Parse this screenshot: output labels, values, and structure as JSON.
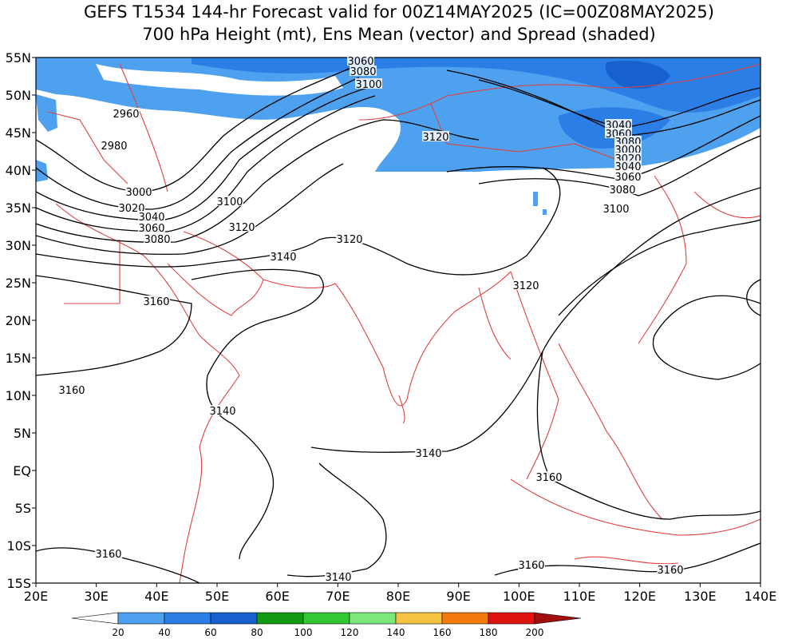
{
  "header": {
    "title": "GEFS T1534 144-hr Forecast valid for 00Z14MAY2025 (IC=00Z08MAY2025)",
    "subtitle": "700 hPa Height (mt), Ens Mean (vector) and Spread (shaded)"
  },
  "axes": {
    "lat_labels": [
      "55N",
      "50N",
      "45N",
      "40N",
      "35N",
      "30N",
      "25N",
      "20N",
      "15N",
      "10N",
      "5N",
      "EQ",
      "5S",
      "10S",
      "15S"
    ],
    "lon_labels": [
      "20E",
      "30E",
      "40E",
      "50E",
      "60E",
      "70E",
      "80E",
      "90E",
      "100E",
      "110E",
      "120E",
      "130E",
      "140E"
    ]
  },
  "contour_labels": [
    "3060",
    "3080",
    "3100",
    "2960",
    "2980",
    "3120",
    "3040",
    "3060",
    "3080",
    "3000",
    "3020",
    "3040",
    "3060",
    "3080",
    "3100",
    "3000",
    "3020",
    "3040",
    "3060",
    "3080",
    "3100",
    "3120",
    "3120",
    "3140",
    "3120",
    "3160",
    "3160",
    "3140",
    "3140",
    "3160",
    "3160",
    "3160",
    "3140",
    "3160"
  ],
  "colorbar": {
    "colors": [
      "#ffffff",
      "#4ea1ee",
      "#2b7ee6",
      "#1761cf",
      "#129b12",
      "#33c833",
      "#7be87b",
      "#f5c242",
      "#f57a0e",
      "#e0140f",
      "#a00e0e"
    ],
    "ticks": [
      20,
      40,
      60,
      80,
      100,
      120,
      140,
      160,
      180,
      200
    ]
  }
}
